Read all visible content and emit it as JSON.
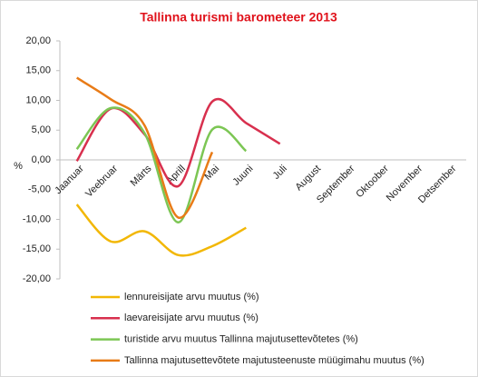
{
  "chart_data": {
    "type": "line",
    "title": "Tallinna turismi barometeer 2013",
    "ylabel": "%",
    "categories": [
      "Jaanuar",
      "Veebruar",
      "Märts",
      "Aprill",
      "Mai",
      "Juuni",
      "Juli",
      "August",
      "September",
      "Oktoober",
      "November",
      "Detsember"
    ],
    "series": [
      {
        "name": "lennureisijate arvu muutus (%)",
        "color": "#f2b705",
        "values": [
          -7.5,
          -13.7,
          -12.0,
          -16.0,
          -14.5,
          -11.4,
          null,
          null,
          null,
          null,
          null,
          null
        ]
      },
      {
        "name": "laevareisijate arvu muutus (%)",
        "color": "#d8304e",
        "values": [
          -0.2,
          8.6,
          4.3,
          -4.4,
          9.8,
          6.2,
          2.7,
          null,
          null,
          null,
          null,
          null
        ]
      },
      {
        "name": "turistide arvu muutus Tallinna majutusettevõtetes (%)",
        "color": "#7cc654",
        "values": [
          1.8,
          8.7,
          4.5,
          -10.5,
          5.1,
          1.5,
          null,
          null,
          null,
          null,
          null,
          null
        ]
      },
      {
        "name": "Tallinna majutusettevõtete majutusteenuste müügimahu muutus (%)",
        "color": "#e87b17",
        "values": [
          13.8,
          10.2,
          5.8,
          -9.7,
          1.3,
          null,
          null,
          null,
          null,
          null,
          null,
          null
        ]
      }
    ],
    "ylim": [
      -20,
      20
    ],
    "yticks": [
      {
        "value": 20,
        "label": "20,00"
      },
      {
        "value": 15,
        "label": "15,00"
      },
      {
        "value": 10,
        "label": "10,00"
      },
      {
        "value": 5,
        "label": "5,00"
      },
      {
        "value": 0,
        "label": "0,00"
      },
      {
        "value": -5,
        "label": "-5,00"
      },
      {
        "value": -10,
        "label": "-10,00"
      },
      {
        "value": -15,
        "label": "-15,00"
      },
      {
        "value": -20,
        "label": "-20,00"
      }
    ],
    "grid": false,
    "smooth": true
  }
}
